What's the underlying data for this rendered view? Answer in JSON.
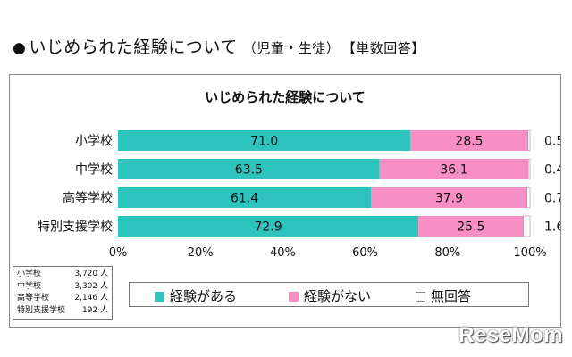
{
  "page_title": {
    "bullet": "●",
    "main": "いじめられた経験について",
    "sub": "（児童・生徒）",
    "tag": "【単数回答】"
  },
  "chart_data": {
    "type": "bar",
    "orientation": "horizontal",
    "stacked": true,
    "title": "いじめられた経験について",
    "categories": [
      "小学校",
      "中学校",
      "高等学校",
      "特別支援学校"
    ],
    "series": [
      {
        "name": "経験がある",
        "color": "#2ec3bd",
        "values": [
          71.0,
          63.5,
          61.4,
          72.9
        ],
        "labels": [
          "71.0",
          "63.5",
          "61.4",
          "72.9"
        ]
      },
      {
        "name": "経験がない",
        "color": "#f78fc4",
        "values": [
          28.5,
          36.1,
          37.9,
          25.5
        ],
        "labels": [
          "28.5",
          "36.1",
          "37.9",
          "25.5"
        ]
      },
      {
        "name": "無回答",
        "color": "#ffffff",
        "values": [
          0.5,
          0.4,
          0.7,
          1.6
        ],
        "labels": [
          "0.5",
          "0.4",
          "0.7",
          "1.6"
        ]
      }
    ],
    "xlim": [
      0,
      100
    ],
    "x_ticks": [
      "0%",
      "20%",
      "40%",
      "60%",
      "80%",
      "100%"
    ],
    "legend": "bottom",
    "grid": false
  },
  "sample_sizes": [
    {
      "label": "小学校",
      "value": "3,720 人"
    },
    {
      "label": "中学校",
      "value": "3,302 人"
    },
    {
      "label": "高等学校",
      "value": "2,146 人"
    },
    {
      "label": "特別支援学校",
      "value": "192 人"
    }
  ],
  "logo": "ReseMom"
}
